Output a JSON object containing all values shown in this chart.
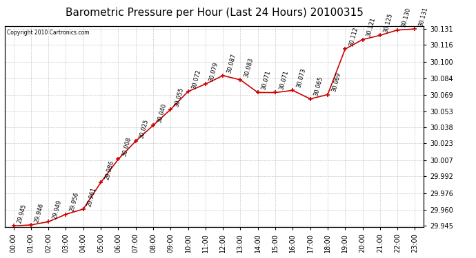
{
  "title": "Barometric Pressure per Hour (Last 24 Hours) 20100315",
  "copyright": "Copyright 2010 Cartronics.com",
  "hours": [
    "00:00",
    "01:00",
    "02:00",
    "03:00",
    "04:00",
    "05:00",
    "06:00",
    "07:00",
    "08:00",
    "09:00",
    "10:00",
    "11:00",
    "12:00",
    "13:00",
    "14:00",
    "15:00",
    "16:00",
    "17:00",
    "18:00",
    "19:00",
    "20:00",
    "21:00",
    "22:00",
    "23:00"
  ],
  "values": [
    29.945,
    29.946,
    29.949,
    29.956,
    29.961,
    29.986,
    30.008,
    30.025,
    30.04,
    30.055,
    30.072,
    30.079,
    30.087,
    30.083,
    30.071,
    30.071,
    30.073,
    30.065,
    30.069,
    30.112,
    30.121,
    30.125,
    30.13,
    30.131
  ],
  "line_color": "#cc0000",
  "marker_color": "#cc0000",
  "bg_color": "#ffffff",
  "grid_color": "#bbbbbb",
  "plot_bg_color": "#ffffff",
  "yticks": [
    29.945,
    29.96,
    29.976,
    29.992,
    30.007,
    30.023,
    30.038,
    30.053,
    30.069,
    30.084,
    30.1,
    30.116,
    30.131
  ],
  "ymin": 29.945,
  "ymax": 30.131,
  "title_fontsize": 11,
  "label_fontsize": 7,
  "annotation_fontsize": 6
}
